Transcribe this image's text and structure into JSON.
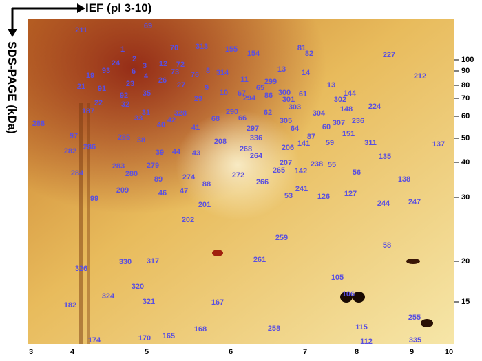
{
  "header": {
    "ief_label": "IEF (pI 3-10)",
    "sds_label": "SDS-PAGE (kDa)"
  },
  "mw_ticks": [
    "100",
    "90",
    "80",
    "70",
    "60",
    "50",
    "40",
    "30",
    "20",
    "15"
  ],
  "pi_ticks": [
    "3",
    "4",
    "5",
    "6",
    "7",
    "8",
    "9",
    "10"
  ],
  "spots": [
    "211",
    "69",
    "70",
    "313",
    "155",
    "154",
    "81",
    "82",
    "227",
    "1",
    "2",
    "24",
    "3",
    "4",
    "93",
    "19",
    "6",
    "12",
    "72",
    "73",
    "76",
    "8",
    "314",
    "13",
    "14",
    "212",
    "26",
    "27",
    "11",
    "299",
    "23",
    "21",
    "91",
    "9",
    "65",
    "13",
    "92",
    "35",
    "10",
    "67",
    "86",
    "300",
    "61",
    "144",
    "22",
    "32",
    "29",
    "294",
    "301",
    "302",
    "187",
    "31",
    "328",
    "290",
    "62",
    "303",
    "224",
    "33",
    "68",
    "66",
    "304",
    "148",
    "288",
    "40",
    "42",
    "41",
    "297",
    "305",
    "307",
    "236",
    "64",
    "60",
    "97",
    "285",
    "38",
    "208",
    "336",
    "87",
    "151",
    "59",
    "311",
    "137",
    "282",
    "286",
    "268",
    "206",
    "39",
    "44",
    "43",
    "264",
    "135",
    "283",
    "279",
    "207",
    "141",
    "238",
    "55",
    "284",
    "280",
    "265",
    "142",
    "56",
    "89",
    "274",
    "272",
    "266",
    "138",
    "209",
    "46",
    "47",
    "88",
    "241",
    "53",
    "126",
    "127",
    "99",
    "244",
    "247",
    "201",
    "202",
    "259",
    "58",
    "261",
    "330",
    "317",
    "326",
    "105",
    "320",
    "106",
    "324",
    "321",
    "167",
    "182",
    "255",
    "258",
    "115",
    "168",
    "165",
    "170",
    "174",
    "112",
    "335"
  ]
}
